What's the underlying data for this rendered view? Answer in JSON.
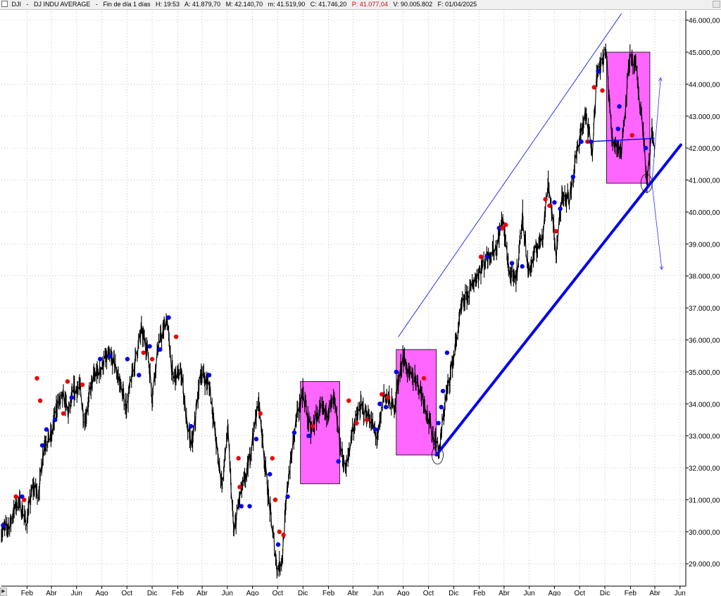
{
  "header": {
    "symbol": "DJI",
    "name": "DJ INDU AVERAGE",
    "period": "Fin de día 1 días",
    "high": "H: 19:53",
    "open": "A: 41.879,70",
    "max": "M: 42.140,70",
    "min": "m: 41.519,90",
    "close": "C: 41.746,20",
    "change": "P: 41.077,04",
    "volume": "V: 90.005.802",
    "date": "F: 01/04/2025"
  },
  "footer": {
    "scroll_glyph": "▶"
  },
  "chart_data": {
    "type": "line",
    "title": "",
    "xlabel": "",
    "ylabel": "",
    "ylim": [
      28300,
      46300
    ],
    "yticks": [
      29000,
      30000,
      31000,
      32000,
      33000,
      34000,
      35000,
      36000,
      37000,
      38000,
      39000,
      40000,
      41000,
      42000,
      43000,
      44000,
      45000,
      46000
    ],
    "ytick_labels": [
      "29.000,00",
      "30.000,00",
      "31.000,00",
      "32.000,00",
      "33.000,00",
      "34.000,00",
      "35.000,00",
      "36.000,00",
      "37.000,00",
      "38.000,00",
      "39.000,00",
      "40.000,00",
      "41.000,00",
      "42.000,00",
      "43.000,00",
      "44.000,00",
      "45.000,00",
      "46.000,00"
    ],
    "xaxis_range": [
      "2020-12-01",
      "2025-06-15"
    ],
    "xticks": [
      {
        "label": "Feb",
        "date": "2021-02-01"
      },
      {
        "label": "Abr",
        "date": "2021-04-01"
      },
      {
        "label": "Jun",
        "date": "2021-06-01"
      },
      {
        "label": "Ago",
        "date": "2021-08-01"
      },
      {
        "label": "Oct",
        "date": "2021-10-01"
      },
      {
        "label": "Dic",
        "date": "2021-12-01"
      },
      {
        "label": "Feb",
        "date": "2022-02-01"
      },
      {
        "label": "Abr",
        "date": "2022-04-01"
      },
      {
        "label": "Jun",
        "date": "2022-06-01"
      },
      {
        "label": "Ago",
        "date": "2022-08-01"
      },
      {
        "label": "Oct",
        "date": "2022-10-01"
      },
      {
        "label": "Dic",
        "date": "2022-12-01"
      },
      {
        "label": "Feb",
        "date": "2023-02-01"
      },
      {
        "label": "Abr",
        "date": "2023-04-01"
      },
      {
        "label": "Jun",
        "date": "2023-06-01"
      },
      {
        "label": "Ago",
        "date": "2023-08-01"
      },
      {
        "label": "Oct",
        "date": "2023-10-01"
      },
      {
        "label": "Dic",
        "date": "2023-12-01"
      },
      {
        "label": "Feb",
        "date": "2024-02-01"
      },
      {
        "label": "Abr",
        "date": "2024-04-01"
      },
      {
        "label": "Jun",
        "date": "2024-06-01"
      },
      {
        "label": "Ago",
        "date": "2024-08-01"
      },
      {
        "label": "Oct",
        "date": "2024-10-01"
      },
      {
        "label": "Dic",
        "date": "2024-12-01"
      },
      {
        "label": "Feb",
        "date": "2025-02-01"
      },
      {
        "label": "Abr",
        "date": "2025-04-01"
      },
      {
        "label": "Jun",
        "date": "2025-06-01"
      }
    ],
    "grid": true,
    "series": [
      {
        "style": "candles",
        "color": "#000000",
        "points": [
          [
            "2020-12-01",
            30000
          ],
          [
            "2020-12-20",
            30200
          ],
          [
            "2021-01-10",
            31000
          ],
          [
            "2021-01-31",
            30300
          ],
          [
            "2021-02-15",
            31400
          ],
          [
            "2021-03-01",
            31200
          ],
          [
            "2021-03-15",
            32800
          ],
          [
            "2021-04-01",
            33000
          ],
          [
            "2021-04-15",
            34000
          ],
          [
            "2021-05-01",
            34200
          ],
          [
            "2021-05-12",
            33700
          ],
          [
            "2021-05-25",
            34400
          ],
          [
            "2021-06-10",
            34500
          ],
          [
            "2021-06-20",
            33400
          ],
          [
            "2021-07-10",
            34800
          ],
          [
            "2021-07-25",
            35000
          ],
          [
            "2021-08-15",
            35500
          ],
          [
            "2021-08-31",
            35300
          ],
          [
            "2021-09-15",
            34600
          ],
          [
            "2021-09-30",
            33900
          ],
          [
            "2021-10-15",
            35000
          ],
          [
            "2021-11-05",
            36300
          ],
          [
            "2021-11-20",
            35700
          ],
          [
            "2021-12-01",
            34200
          ],
          [
            "2021-12-15",
            35800
          ],
          [
            "2021-12-31",
            36400
          ],
          [
            "2022-01-05",
            36700
          ],
          [
            "2022-01-20",
            34800
          ],
          [
            "2022-02-10",
            35000
          ],
          [
            "2022-02-24",
            33200
          ],
          [
            "2022-03-08",
            32700
          ],
          [
            "2022-03-29",
            35000
          ],
          [
            "2022-04-20",
            34500
          ],
          [
            "2022-05-10",
            32200
          ],
          [
            "2022-05-20",
            31500
          ],
          [
            "2022-06-02",
            33200
          ],
          [
            "2022-06-17",
            29900
          ],
          [
            "2022-07-01",
            31100
          ],
          [
            "2022-07-20",
            31900
          ],
          [
            "2022-08-16",
            34100
          ],
          [
            "2022-09-05",
            31500
          ],
          [
            "2022-09-30",
            28800
          ],
          [
            "2022-10-12",
            29200
          ],
          [
            "2022-10-25",
            31500
          ],
          [
            "2022-11-15",
            33500
          ],
          [
            "2022-12-01",
            34400
          ],
          [
            "2022-12-20",
            33100
          ],
          [
            "2023-01-10",
            33800
          ],
          [
            "2023-01-25",
            33700
          ],
          [
            "2023-02-15",
            34100
          ],
          [
            "2023-03-01",
            32700
          ],
          [
            "2023-03-15",
            31900
          ],
          [
            "2023-03-31",
            33200
          ],
          [
            "2023-04-20",
            33900
          ],
          [
            "2023-05-10",
            33600
          ],
          [
            "2023-05-31",
            32900
          ],
          [
            "2023-06-15",
            34300
          ],
          [
            "2023-07-10",
            33900
          ],
          [
            "2023-07-31",
            35500
          ],
          [
            "2023-08-15",
            34900
          ],
          [
            "2023-09-01",
            34800
          ],
          [
            "2023-09-20",
            34100
          ],
          [
            "2023-10-05",
            33300
          ],
          [
            "2023-10-27",
            32500
          ],
          [
            "2023-11-10",
            34000
          ],
          [
            "2023-11-30",
            35400
          ],
          [
            "2023-12-20",
            37000
          ],
          [
            "2024-01-10",
            37600
          ],
          [
            "2024-01-31",
            38100
          ],
          [
            "2024-02-20",
            38600
          ],
          [
            "2024-03-15",
            38900
          ],
          [
            "2024-03-28",
            39800
          ],
          [
            "2024-04-15",
            38000
          ],
          [
            "2024-04-30",
            37900
          ],
          [
            "2024-05-16",
            39900
          ],
          [
            "2024-05-30",
            38100
          ],
          [
            "2024-06-15",
            38700
          ],
          [
            "2024-07-05",
            39400
          ],
          [
            "2024-07-17",
            41000
          ],
          [
            "2024-08-05",
            38700
          ],
          [
            "2024-08-20",
            40600
          ],
          [
            "2024-09-06",
            40400
          ],
          [
            "2024-09-30",
            42300
          ],
          [
            "2024-10-15",
            43000
          ],
          [
            "2024-11-01",
            42000
          ],
          [
            "2024-11-11",
            44200
          ],
          [
            "2024-11-29",
            44900
          ],
          [
            "2024-12-04",
            45000
          ],
          [
            "2024-12-18",
            42300
          ],
          [
            "2025-01-10",
            41900
          ],
          [
            "2025-01-30",
            44800
          ],
          [
            "2025-02-14",
            44500
          ],
          [
            "2025-03-04",
            42500
          ],
          [
            "2025-03-13",
            40800
          ],
          [
            "2025-03-25",
            42500
          ],
          [
            "2025-04-01",
            42000
          ]
        ]
      }
    ],
    "signals": {
      "buy_color": "#0000ee",
      "sell_color": "#ee0000",
      "buy": [
        [
          "2020-12-05",
          30200
        ],
        [
          "2021-01-20",
          31100
        ],
        [
          "2021-03-10",
          32700
        ],
        [
          "2021-03-20",
          33200
        ],
        [
          "2021-04-10",
          33500
        ],
        [
          "2021-05-20",
          34200
        ],
        [
          "2021-07-28",
          35400
        ],
        [
          "2021-08-20",
          35500
        ],
        [
          "2021-10-02",
          35400
        ],
        [
          "2021-10-30",
          34900
        ],
        [
          "2021-11-25",
          35800
        ],
        [
          "2021-12-20",
          35700
        ],
        [
          "2022-01-10",
          36700
        ],
        [
          "2022-03-05",
          33300
        ],
        [
          "2022-04-18",
          34900
        ],
        [
          "2022-07-05",
          30800
        ],
        [
          "2022-07-25",
          30800
        ],
        [
          "2022-08-10",
          32900
        ],
        [
          "2022-09-12",
          31800
        ],
        [
          "2022-10-02",
          29600
        ],
        [
          "2022-10-25",
          31100
        ],
        [
          "2022-11-10",
          33100
        ],
        [
          "2022-12-15",
          33000
        ],
        [
          "2023-02-25",
          32200
        ],
        [
          "2023-05-25",
          33200
        ],
        [
          "2023-06-05",
          34000
        ],
        [
          "2023-06-20",
          33900
        ],
        [
          "2023-07-15",
          35000
        ],
        [
          "2023-10-25",
          33400
        ],
        [
          "2023-11-01",
          33900
        ],
        [
          "2023-11-05",
          34400
        ],
        [
          "2023-11-15",
          35600
        ],
        [
          "2024-02-20",
          38600
        ],
        [
          "2024-03-20",
          39500
        ],
        [
          "2024-04-20",
          38400
        ],
        [
          "2024-05-15",
          38300
        ],
        [
          "2024-08-01",
          40300
        ],
        [
          "2024-08-15",
          40100
        ],
        [
          "2024-09-15",
          41100
        ],
        [
          "2024-10-05",
          42200
        ],
        [
          "2024-10-28",
          42200
        ],
        [
          "2024-11-15",
          44400
        ],
        [
          "2025-01-05",
          43300
        ],
        [
          "2025-01-02",
          42600
        ],
        [
          "2025-03-10",
          42000
        ]
      ],
      "sell": [
        [
          "2021-01-05",
          31100
        ],
        [
          "2021-01-25",
          31000
        ],
        [
          "2021-02-25",
          34800
        ],
        [
          "2021-03-05",
          34100
        ],
        [
          "2021-04-30",
          33700
        ],
        [
          "2021-05-10",
          34700
        ],
        [
          "2021-06-15",
          34600
        ],
        [
          "2021-11-10",
          35600
        ],
        [
          "2021-12-01",
          35400
        ],
        [
          "2022-01-28",
          36100
        ],
        [
          "2022-06-28",
          32300
        ],
        [
          "2022-07-01",
          31400
        ],
        [
          "2022-08-20",
          33700
        ],
        [
          "2022-09-18",
          32300
        ],
        [
          "2022-09-25",
          31000
        ],
        [
          "2022-10-05",
          30000
        ],
        [
          "2022-10-15",
          29900
        ],
        [
          "2022-12-25",
          33300
        ],
        [
          "2023-03-22",
          34100
        ],
        [
          "2023-04-10",
          33400
        ],
        [
          "2023-05-05",
          33500
        ],
        [
          "2023-06-10",
          34300
        ],
        [
          "2023-06-25",
          34200
        ],
        [
          "2023-09-20",
          34800
        ],
        [
          "2024-02-05",
          38600
        ],
        [
          "2024-03-28",
          39500
        ],
        [
          "2024-04-05",
          39600
        ],
        [
          "2024-07-10",
          40400
        ],
        [
          "2024-07-20",
          40200
        ],
        [
          "2024-08-05",
          39400
        ],
        [
          "2024-10-20",
          42200
        ],
        [
          "2024-11-05",
          43900
        ],
        [
          "2024-11-25",
          43800
        ],
        [
          "2025-02-05",
          42400
        ]
      ]
    },
    "boxes": [
      {
        "x0": "2022-11-25",
        "x1": "2023-02-28",
        "y0": 31500,
        "y1": 34700
      },
      {
        "x0": "2023-07-15",
        "x1": "2023-10-20",
        "y0": 32400,
        "y1": 35700
      },
      {
        "x0": "2024-12-05",
        "x1": "2025-03-20",
        "y0": 40900,
        "y1": 45000
      }
    ],
    "trendlines": [
      {
        "x0": "2023-10-20",
        "y0": 32400,
        "x1": "2025-06-03",
        "y1": 42100,
        "color": "#0000ee",
        "width": 4
      },
      {
        "x0": "2023-07-20",
        "y0": 36100,
        "x1": "2025-01-10",
        "y1": 46200,
        "color": "#0000ee",
        "width": 0.8
      },
      {
        "x0": "2024-10-20",
        "y0": 42200,
        "x1": "2025-03-30",
        "y1": 42300,
        "color": "#0000ee",
        "width": 1.4
      },
      {
        "x0": "2025-03-25",
        "y0": 40900,
        "x1": "2025-04-15",
        "y1": 44200,
        "color": "#3333ff",
        "width": 0.8,
        "arrow": true
      },
      {
        "x0": "2025-03-25",
        "y0": 40900,
        "x1": "2025-04-18",
        "y1": 38200,
        "color": "#3333ff",
        "width": 0.8,
        "arrow": true
      }
    ],
    "circles": [
      {
        "x": "2023-10-23",
        "y": 32400
      },
      {
        "x": "2025-03-12",
        "y": 40900
      }
    ]
  }
}
